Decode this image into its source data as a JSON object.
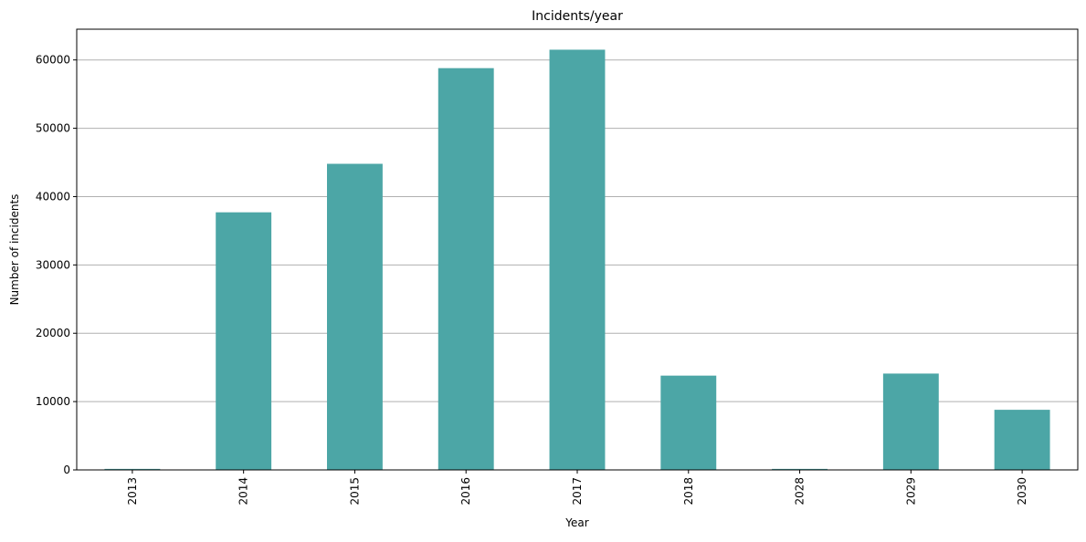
{
  "chart_data": {
    "type": "bar",
    "title": "Incidents/year",
    "xlabel": "Year",
    "ylabel": "Number of incidents",
    "categories": [
      "2013",
      "2014",
      "2015",
      "2016",
      "2017",
      "2018",
      "2028",
      "2029",
      "2030"
    ],
    "values": [
      150,
      37700,
      44800,
      58800,
      61500,
      13800,
      150,
      14100,
      8800
    ],
    "ylim": [
      0,
      64500
    ],
    "yticks": [
      0,
      10000,
      20000,
      30000,
      40000,
      50000,
      60000
    ],
    "ytick_labels": [
      "0",
      "10000",
      "20000",
      "30000",
      "40000",
      "50000",
      "60000"
    ],
    "grid": "y-major",
    "bar_color": "#4ca6a6",
    "grid_color": "#b0b0b0"
  }
}
